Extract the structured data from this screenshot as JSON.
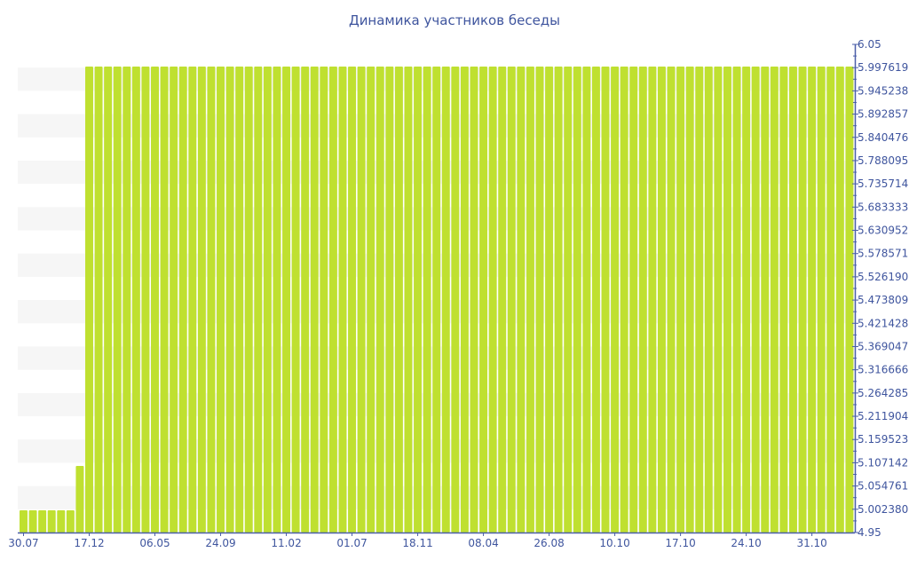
{
  "chart_data": {
    "type": "bar",
    "title": "Динамика участников беседы",
    "colors": {
      "bar": "#bfe030",
      "axis": "#4a5ea8",
      "text": "#3f559e",
      "band": "#f6f6f6"
    },
    "ylim": [
      4.95,
      6.05
    ],
    "y_axis_position": "right",
    "y_ticks": [
      "6.05",
      "5.997619",
      "5.945238",
      "5.892857",
      "5.840476",
      "5.788095",
      "5.735714",
      "5.683333",
      "5.630952",
      "5.578571",
      "5.526190",
      "5.473809",
      "5.421428",
      "5.369047",
      "5.316666",
      "5.264285",
      "5.211904",
      "5.159523",
      "5.107142",
      "5.054761",
      "5.002380",
      "4.95"
    ],
    "x_tick_labels": [
      "30.07",
      "17.12",
      "06.05",
      "24.09",
      "11.02",
      "01.07",
      "18.11",
      "08.04",
      "26.08",
      "10.10",
      "17.10",
      "24.10",
      "31.10"
    ],
    "x_tick_every": 7,
    "values": [
      5,
      5,
      5,
      5,
      5,
      5,
      5.1,
      6,
      6,
      6,
      6,
      6,
      6,
      6,
      6,
      6,
      6,
      6,
      6,
      6,
      6,
      6,
      6,
      6,
      6,
      6,
      6,
      6,
      6,
      6,
      6,
      6,
      6,
      6,
      6,
      6,
      6,
      6,
      6,
      6,
      6,
      6,
      6,
      6,
      6,
      6,
      6,
      6,
      6,
      6,
      6,
      6,
      6,
      6,
      6,
      6,
      6,
      6,
      6,
      6,
      6,
      6,
      6,
      6,
      6,
      6,
      6,
      6,
      6,
      6,
      6,
      6,
      6,
      6,
      6,
      6,
      6,
      6,
      6,
      6,
      6,
      6,
      6,
      6,
      6,
      6,
      6,
      6,
      6
    ],
    "legend": "none",
    "grid": false
  }
}
